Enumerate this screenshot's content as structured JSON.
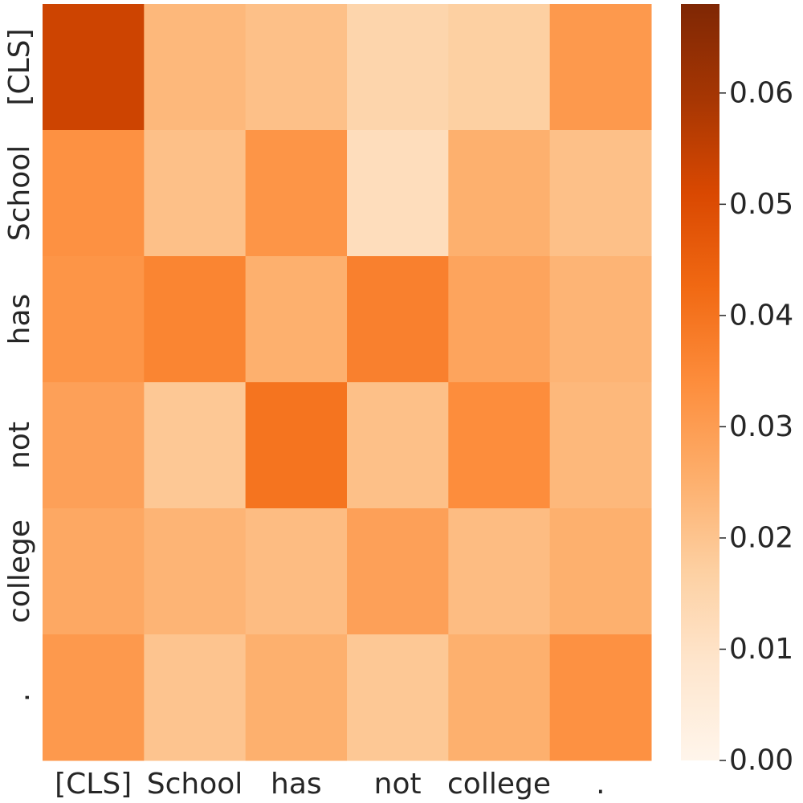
{
  "chart_data": {
    "type": "heatmap",
    "title": "",
    "xlabel": "",
    "ylabel": "",
    "x_categories": [
      "[CLS]",
      "School",
      "has",
      "not",
      "college",
      "."
    ],
    "y_categories": [
      "[CLS]",
      "School",
      "has",
      "not",
      "college",
      "."
    ],
    "values": [
      [
        0.053,
        0.023,
        0.021,
        0.015,
        0.017,
        0.031
      ],
      [
        0.033,
        0.021,
        0.032,
        0.012,
        0.025,
        0.021
      ],
      [
        0.032,
        0.036,
        0.025,
        0.037,
        0.028,
        0.024
      ],
      [
        0.029,
        0.019,
        0.04,
        0.021,
        0.034,
        0.023
      ],
      [
        0.027,
        0.024,
        0.022,
        0.029,
        0.022,
        0.025
      ],
      [
        0.031,
        0.02,
        0.025,
        0.019,
        0.025,
        0.033
      ]
    ],
    "colorbar": {
      "min": 0.0,
      "max": 0.068,
      "ticks": [
        0.0,
        0.01,
        0.02,
        0.03,
        0.04,
        0.05,
        0.06
      ],
      "tick_labels": [
        "0.00",
        "0.01",
        "0.02",
        "0.03",
        "0.04",
        "0.05",
        "0.06"
      ],
      "colormap": "Oranges",
      "colors": [
        "#fff5eb",
        "#fee6ce",
        "#fdd0a2",
        "#fdae6b",
        "#fd8d3c",
        "#f16913",
        "#d94801",
        "#a63603",
        "#7f2704"
      ]
    },
    "grid": false,
    "legend": "colorbar-right"
  }
}
